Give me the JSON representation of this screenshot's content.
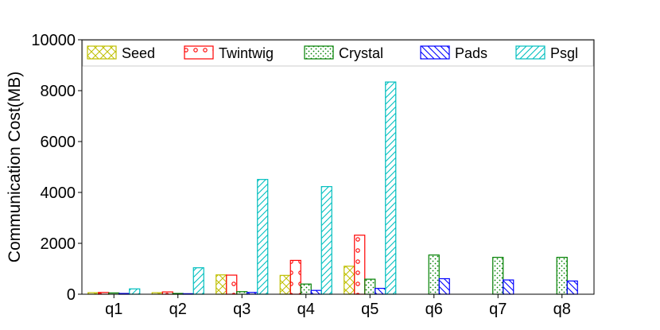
{
  "chart_data": {
    "type": "bar",
    "ylabel": "Communication Cost(MB)",
    "xlabel": "",
    "ylim": [
      0,
      10000
    ],
    "yticks": [
      0,
      2000,
      4000,
      6000,
      8000,
      10000
    ],
    "categories": [
      "q1",
      "q2",
      "q3",
      "q4",
      "q5",
      "q6",
      "q7",
      "q8"
    ],
    "legend_position": "top",
    "grid": false,
    "series": [
      {
        "name": "Seed",
        "color": "#bfbf00",
        "pattern": "crosshatch",
        "values": [
          60,
          60,
          760,
          740,
          1100,
          null,
          null,
          null
        ]
      },
      {
        "name": "Twintwig",
        "color": "#ff0000",
        "pattern": "circles",
        "values": [
          70,
          90,
          750,
          1330,
          2320,
          null,
          null,
          null
        ]
      },
      {
        "name": "Crystal",
        "color": "#008000",
        "pattern": "dots",
        "values": [
          50,
          30,
          100,
          400,
          590,
          1540,
          1450,
          1450
        ]
      },
      {
        "name": "Pads",
        "color": "#0000ff",
        "pattern": "backslash",
        "values": [
          30,
          20,
          70,
          150,
          230,
          610,
          560,
          520
        ]
      },
      {
        "name": "Psgl",
        "color": "#00bfbf",
        "pattern": "slash",
        "values": [
          210,
          1040,
          4510,
          4230,
          8340,
          null,
          null,
          null
        ]
      }
    ]
  }
}
